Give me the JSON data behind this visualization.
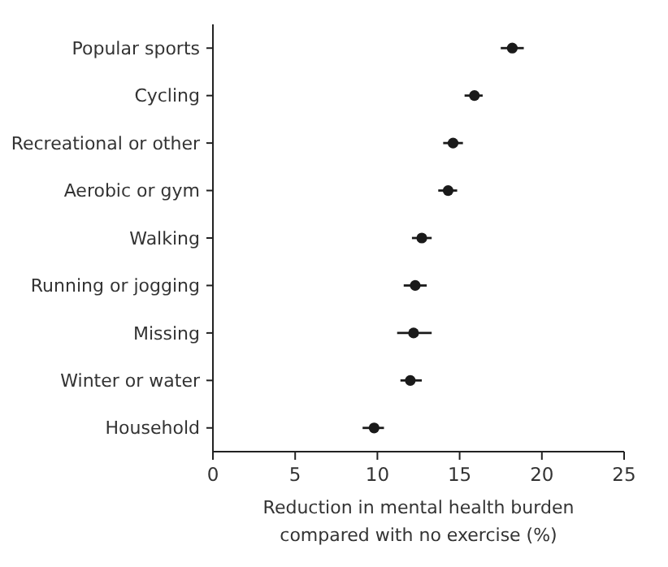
{
  "chart_data": {
    "type": "scatter",
    "orientation": "horizontal",
    "categories": [
      "Popular sports",
      "Cycling",
      "Recreational or other",
      "Aerobic or gym",
      "Walking",
      "Running or jogging",
      "Missing",
      "Winter or water",
      "Household"
    ],
    "values": [
      18.2,
      15.9,
      14.6,
      14.3,
      12.7,
      12.3,
      12.2,
      12.0,
      9.8
    ],
    "errors": [
      [
        17.5,
        18.9
      ],
      [
        15.3,
        16.4
      ],
      [
        14.0,
        15.2
      ],
      [
        13.7,
        14.85
      ],
      [
        12.1,
        13.3
      ],
      [
        11.6,
        13.0
      ],
      [
        11.2,
        13.3
      ],
      [
        11.4,
        12.7
      ],
      [
        9.1,
        10.4
      ]
    ],
    "color": "#1a1a1a",
    "marker": "circle",
    "xlim": [
      0,
      25
    ],
    "xticks": [
      0,
      5,
      10,
      15,
      20,
      25
    ],
    "xlabel": "Reduction in mental health burden\ncompared with no exercise (%)",
    "grid": false
  }
}
